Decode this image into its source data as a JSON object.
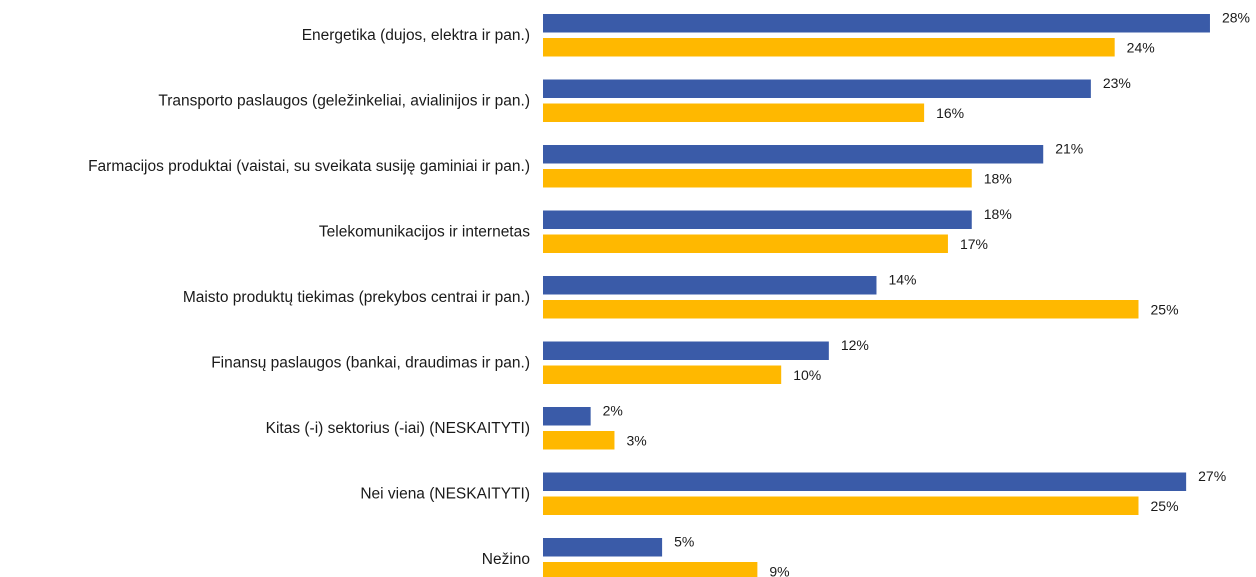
{
  "chart_data": {
    "type": "bar",
    "orientation": "horizontal",
    "categories": [
      "Energetika (dujos, elektra ir pan.)",
      "Transporto paslaugos (geležinkeliai, avialinijos ir pan.)",
      "Farmacijos produktai (vaistai, su sveikata susiję gaminiai ir pan.)",
      "Telekomunikacijos ir internetas",
      "Maisto produktų tiekimas (prekybos centrai ir pan.)",
      "Finansų paslaugos (bankai, draudimas ir pan.)",
      "Kitas (-i) sektorius (-iai) (NESKAITYTI)",
      "Nei viena (NESKAITYTI)",
      "Nežino"
    ],
    "series": [
      {
        "color": "#3a5ba8",
        "values": [
          28,
          23,
          21,
          18,
          14,
          12,
          2,
          27,
          5
        ],
        "value_labels": [
          "28%",
          "23%",
          "21%",
          "18%",
          "14%",
          "12%",
          "2%",
          "27%",
          "5%"
        ]
      },
      {
        "color": "#ffb800",
        "values": [
          24,
          16,
          18,
          17,
          25,
          10,
          3,
          25,
          9
        ],
        "value_labels": [
          "24%",
          "16%",
          "18%",
          "17%",
          "25%",
          "10%",
          "3%",
          "25%",
          "9%"
        ]
      }
    ]
  }
}
